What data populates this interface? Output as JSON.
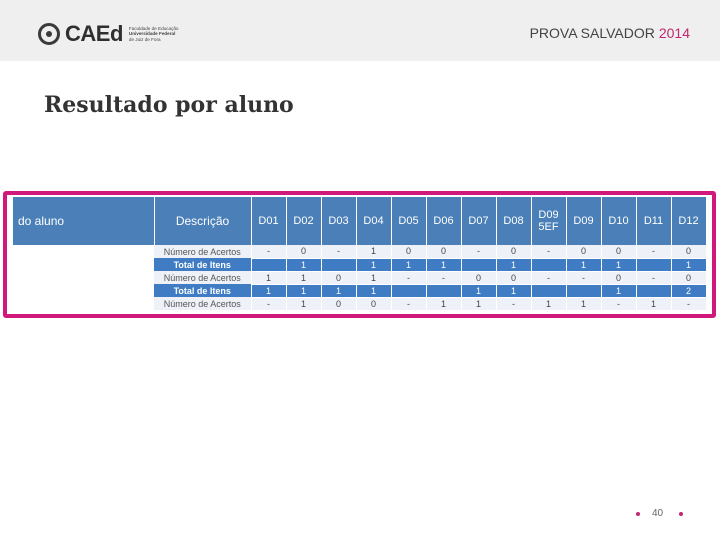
{
  "header": {
    "logo": {
      "icon": "caed-ring-logo",
      "word": "CAEd",
      "subtitle_lines": [
        "Faculdade de Educação",
        "Universidade Federal",
        "de Juiz de Fora"
      ]
    },
    "prova": {
      "text": "PROVA SALVADOR",
      "year": "2014"
    }
  },
  "title": "Resultado por aluno",
  "table": {
    "headers": {
      "first": "do aluno",
      "desc": "Descrição",
      "codes": [
        "D01",
        "D02",
        "D03",
        "D04",
        "D05",
        "D06",
        "D07",
        "D08",
        "D09\n5EF",
        "D09",
        "D10",
        "D11",
        "D12"
      ]
    },
    "rows": [
      {
        "kind": "acertos",
        "desc": "Número de Acertos",
        "cells": [
          "-",
          "0",
          "-",
          "1",
          "0",
          "0",
          "-",
          "0",
          "-",
          "0",
          "0",
          "-",
          "0"
        ]
      },
      {
        "kind": "total",
        "desc": "Total de Itens",
        "cells": [
          "",
          "1",
          "",
          "1",
          "1",
          "1",
          "",
          "1",
          "",
          "1",
          "1",
          "",
          "1"
        ]
      },
      {
        "kind": "acertos",
        "desc": "Número de Acertos",
        "cells": [
          "1",
          "1",
          "0",
          "1",
          "-",
          "-",
          "0",
          "0",
          "-",
          "-",
          "0",
          "-",
          "0"
        ]
      },
      {
        "kind": "total",
        "desc": "Total de Itens",
        "cells": [
          "1",
          "1",
          "1",
          "1",
          "",
          "",
          "1",
          "1",
          "",
          "",
          "1",
          "",
          "2"
        ]
      },
      {
        "kind": "acertos",
        "desc": "Número de Acertos",
        "cells": [
          "-",
          "1",
          "0",
          "0",
          "-",
          "1",
          "1",
          "-",
          "1",
          "1",
          "-",
          "1",
          "-"
        ]
      }
    ]
  },
  "footer": {
    "page": "40"
  },
  "colors": {
    "accent": "#d0197a",
    "header_blue": "#4a7fb8",
    "total_blue": "#3f7cc4"
  }
}
